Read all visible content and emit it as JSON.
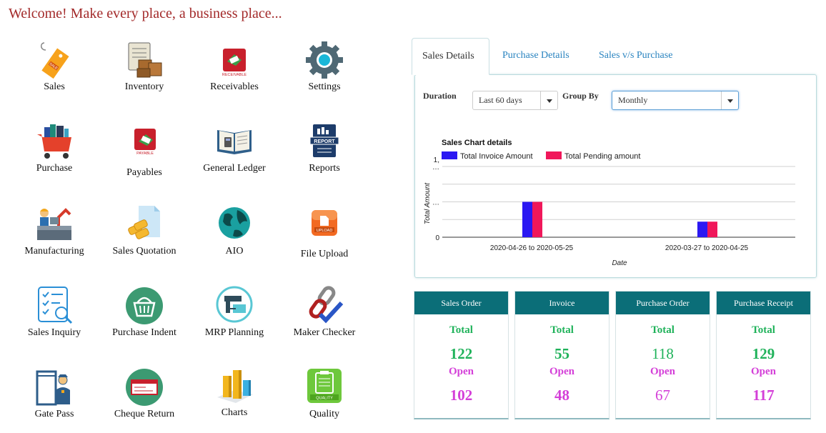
{
  "header": {
    "welcome": "Welcome! Make every place, a business place..."
  },
  "modules": [
    {
      "label": "Sales",
      "icon": "sales-tag-icon"
    },
    {
      "label": "Inventory",
      "icon": "inventory-boxes-icon"
    },
    {
      "label": "Receivables",
      "icon": "receivable-icon"
    },
    {
      "label": "Settings",
      "icon": "gear-icon"
    },
    {
      "label": "Purchase",
      "icon": "shopping-cart-icon"
    },
    {
      "label": "Payables",
      "icon": "payable-icon"
    },
    {
      "label": "General Ledger",
      "icon": "ledger-book-icon"
    },
    {
      "label": "Reports",
      "icon": "report-icon"
    },
    {
      "label": "Manufacturing",
      "icon": "manufacturing-icon"
    },
    {
      "label": "Sales Quotation",
      "icon": "quotation-icon"
    },
    {
      "label": "AIO",
      "icon": "globe-icon"
    },
    {
      "label": "File Upload",
      "icon": "upload-icon"
    },
    {
      "label": "Sales Inquiry",
      "icon": "inquiry-checklist-icon"
    },
    {
      "label": "Purchase Indent",
      "icon": "basket-icon"
    },
    {
      "label": "MRP Planning",
      "icon": "mrp-planning-icon"
    },
    {
      "label": "Maker Checker",
      "icon": "chain-check-icon"
    },
    {
      "label": "Gate Pass",
      "icon": "gate-guard-icon"
    },
    {
      "label": "Cheque Return",
      "icon": "cheque-icon"
    },
    {
      "label": "Charts",
      "icon": "bar-chart-icon"
    },
    {
      "label": "Quality",
      "icon": "quality-clipboard-icon"
    }
  ],
  "tabs": [
    {
      "label": "Sales Details",
      "active": true
    },
    {
      "label": "Purchase Details",
      "active": false
    },
    {
      "label": "Sales v/s Purchase",
      "active": false
    }
  ],
  "filters": {
    "duration_label": "Duration",
    "duration_value": "Last 60 days",
    "groupby_label": "Group By",
    "groupby_value": "Monthly"
  },
  "chart_data": {
    "type": "bar",
    "title": "Sales Chart details",
    "xlabel": "Date",
    "ylabel": "Total Amount",
    "y_tick_labels": [
      "0",
      "…",
      "1,\n…"
    ],
    "ylim": [
      0,
      1
    ],
    "categories": [
      "2020-04-26 to 2020-05-25",
      "2020-03-27 to 2020-04-25"
    ],
    "series": [
      {
        "name": "Total Invoice Amount",
        "color": "#2b18f2",
        "values": [
          0.5,
          0.22
        ]
      },
      {
        "name": "Total Pending amount",
        "color": "#f0175a",
        "values": [
          0.5,
          0.22
        ]
      }
    ],
    "legend": "top-left",
    "grid": true
  },
  "cards": [
    {
      "title": "Sales Order",
      "total_label": "Total",
      "total": "122",
      "open_label": "Open",
      "open": "102",
      "light": false
    },
    {
      "title": "Invoice",
      "total_label": "Total",
      "total": "55",
      "open_label": "Open",
      "open": "48",
      "light": false
    },
    {
      "title": "Purchase Order",
      "total_label": "Total",
      "total": "118",
      "open_label": "Open",
      "open": "67",
      "light": true
    },
    {
      "title": "Purchase Receipt",
      "total_label": "Total",
      "total": "129",
      "open_label": "Open",
      "open": "117",
      "light": false
    }
  ]
}
